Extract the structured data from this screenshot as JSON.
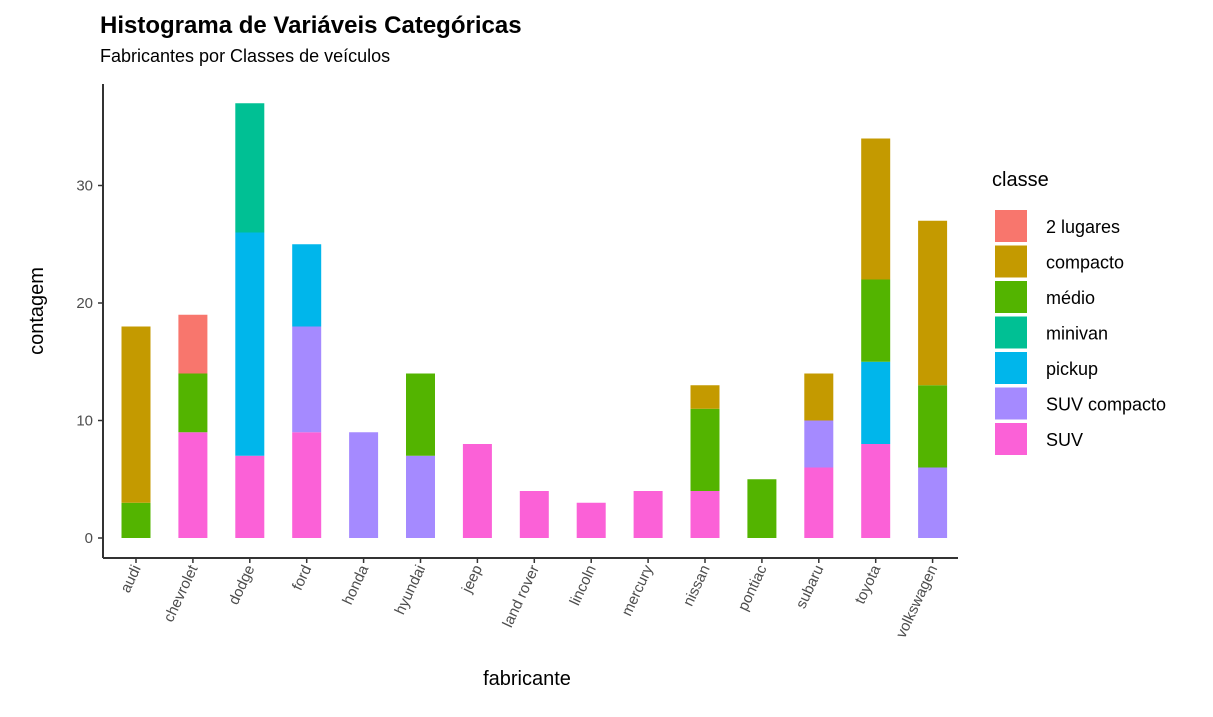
{
  "chart_data": {
    "type": "bar",
    "stacked": true,
    "title": "Histograma de Variáveis Categóricas",
    "subtitle": "Fabricantes por Classes de veículos",
    "xlabel": "fabricante",
    "ylabel": "contagem",
    "ylim": [
      0,
      38
    ],
    "yticks": [
      0,
      10,
      20,
      30
    ],
    "grid": false,
    "legend_position": "right",
    "legend_title": "classe",
    "categories": [
      "audi",
      "chevrolet",
      "dodge",
      "ford",
      "honda",
      "hyundai",
      "jeep",
      "land rover",
      "lincoln",
      "mercury",
      "nissan",
      "pontiac",
      "subaru",
      "toyota",
      "volkswagen"
    ],
    "series": [
      {
        "name": "2 lugares",
        "color": "#F8766D",
        "values": [
          0,
          5,
          0,
          0,
          0,
          0,
          0,
          0,
          0,
          0,
          0,
          0,
          0,
          0,
          0
        ]
      },
      {
        "name": "compacto",
        "color": "#C49A00",
        "values": [
          15,
          0,
          0,
          0,
          0,
          0,
          0,
          0,
          0,
          0,
          2,
          0,
          4,
          12,
          14
        ]
      },
      {
        "name": "médio",
        "color": "#53B400",
        "values": [
          3,
          5,
          0,
          0,
          0,
          7,
          0,
          0,
          0,
          0,
          7,
          5,
          0,
          7,
          7
        ]
      },
      {
        "name": "minivan",
        "color": "#00C094",
        "values": [
          0,
          0,
          11,
          0,
          0,
          0,
          0,
          0,
          0,
          0,
          0,
          0,
          0,
          0,
          0
        ]
      },
      {
        "name": "pickup",
        "color": "#00B6EB",
        "values": [
          0,
          0,
          19,
          7,
          0,
          0,
          0,
          0,
          0,
          0,
          0,
          0,
          0,
          7,
          0
        ]
      },
      {
        "name": "SUV compacto",
        "color": "#A58AFF",
        "values": [
          0,
          0,
          0,
          9,
          9,
          7,
          0,
          0,
          0,
          0,
          0,
          0,
          4,
          0,
          6
        ]
      },
      {
        "name": "SUV",
        "color": "#FB61D7",
        "values": [
          0,
          9,
          7,
          9,
          0,
          0,
          8,
          4,
          3,
          4,
          4,
          0,
          6,
          8,
          0
        ]
      }
    ]
  }
}
